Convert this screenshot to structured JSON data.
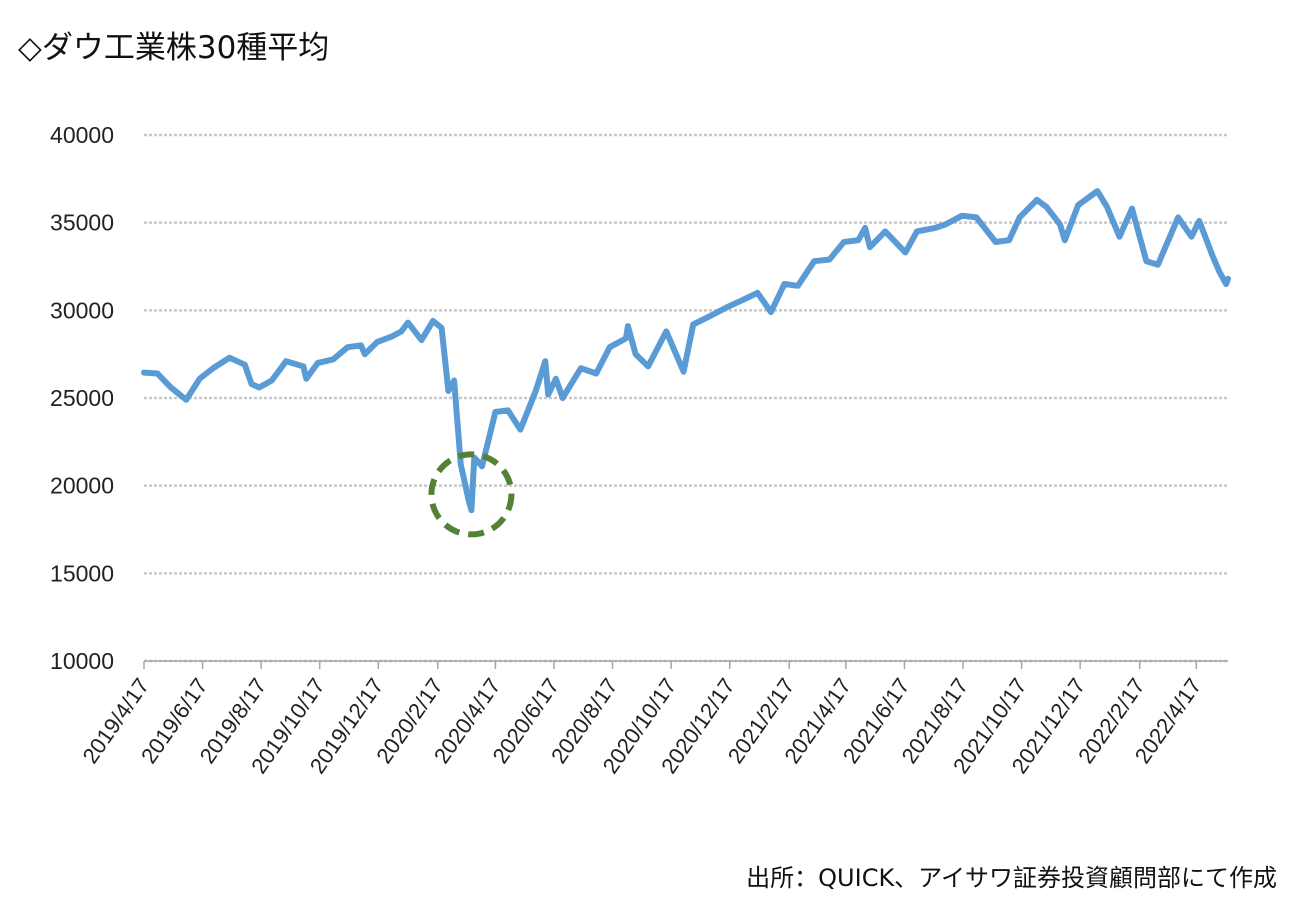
{
  "title": "◇ダウ工業株30種平均",
  "source": "出所：QUICK、アイサワ証券投資顧問部にて作成",
  "colors": {
    "line": "#5b9bd5",
    "grid": "#c8c8c8",
    "highlight": "#548235",
    "axis": "#a6a6a6"
  },
  "chart_data": {
    "type": "line",
    "title": "◇ダウ工業株30種平均",
    "xlabel": "",
    "ylabel": "",
    "ylim": [
      10000,
      40000
    ],
    "yticks": [
      10000,
      15000,
      20000,
      25000,
      30000,
      35000,
      40000
    ],
    "xticks": [
      "2019/4/17",
      "2019/6/17",
      "2019/8/17",
      "2019/10/17",
      "2019/12/17",
      "2020/2/17",
      "2020/4/17",
      "2020/6/17",
      "2020/8/17",
      "2020/10/17",
      "2020/12/17",
      "2021/2/17",
      "2021/4/17",
      "2021/6/17",
      "2021/8/17",
      "2021/10/17",
      "2021/12/17",
      "2022/2/17",
      "2022/4/17"
    ],
    "xlim": [
      "2019/4/17",
      "2022/5/20"
    ],
    "grid": true,
    "legend": "none",
    "series": [
      {
        "x": [
          "2019/4/17",
          "2019/5/1",
          "2019/5/15",
          "2019/5/31",
          "2019/6/14",
          "2019/6/28",
          "2019/7/15",
          "2019/7/31",
          "2019/8/7",
          "2019/8/15",
          "2019/8/28",
          "2019/9/12",
          "2019/9/30",
          "2019/10/3",
          "2019/10/15",
          "2019/10/31",
          "2019/11/15",
          "2019/11/29",
          "2019/12/3",
          "2019/12/16",
          "2019/12/31",
          "2020/1/10",
          "2020/1/17",
          "2020/1/31",
          "2020/2/12",
          "2020/2/21",
          "2020/2/28",
          "2020/3/5",
          "2020/3/12",
          "2020/3/16",
          "2020/3/20",
          "2020/3/23",
          "2020/3/26",
          "2020/4/3",
          "2020/4/17",
          "2020/4/30",
          "2020/5/13",
          "2020/5/29",
          "2020/6/8",
          "2020/6/11",
          "2020/6/19",
          "2020/6/26",
          "2020/7/15",
          "2020/7/31",
          "2020/8/14",
          "2020/8/31",
          "2020/9/2",
          "2020/9/10",
          "2020/9/23",
          "2020/10/12",
          "2020/10/30",
          "2020/11/9",
          "2020/11/24",
          "2020/12/15",
          "2020/12/31",
          "2021/1/15",
          "2021/1/29",
          "2021/2/12",
          "2021/2/26",
          "2021/3/15",
          "2021/3/31",
          "2021/4/15",
          "2021/4/30",
          "2021/5/7",
          "2021/5/12",
          "2021/5/28",
          "2021/6/18",
          "2021/6/30",
          "2021/7/19",
          "2021/7/30",
          "2021/8/16",
          "2021/8/31",
          "2021/9/20",
          "2021/10/4",
          "2021/10/15",
          "2021/11/2",
          "2021/11/12",
          "2021/11/26",
          "2021/12/1",
          "2021/12/15",
          "2022/1/4",
          "2022/1/14",
          "2022/1/27",
          "2022/2/9",
          "2022/2/24",
          "2022/3/8",
          "2022/3/29",
          "2022/4/12",
          "2022/4/20",
          "2022/5/4",
          "2022/5/11",
          "2022/5/18",
          "2022/5/20"
        ],
        "y": [
          26450,
          26400,
          25600,
          24900,
          26100,
          26700,
          27300,
          26900,
          25800,
          25600,
          26000,
          27100,
          26800,
          26100,
          27000,
          27200,
          27900,
          28000,
          27500,
          28200,
          28500,
          28800,
          29300,
          28300,
          29400,
          29000,
          25400,
          26000,
          21200,
          20200,
          19200,
          18600,
          21600,
          21100,
          24200,
          24300,
          23200,
          25400,
          27100,
          25200,
          26100,
          25000,
          26700,
          26400,
          27900,
          28400,
          29100,
          27500,
          26800,
          28800,
          26500,
          29200,
          29600,
          30200,
          30600,
          31000,
          29900,
          31500,
          31400,
          32800,
          32900,
          33900,
          34000,
          34700,
          33600,
          34500,
          33300,
          34500,
          34700,
          34900,
          35400,
          35300,
          33900,
          34000,
          35300,
          36300,
          35900,
          34900,
          34000,
          36000,
          36800,
          35900,
          34200,
          35800,
          32800,
          32600,
          35300,
          34200,
          35100,
          33100,
          32200,
          31500,
          31800
        ]
      }
    ],
    "annotation": {
      "shape": "dashed-circle",
      "x": "2020/3/23",
      "y": 19500,
      "color": "#548235"
    }
  }
}
